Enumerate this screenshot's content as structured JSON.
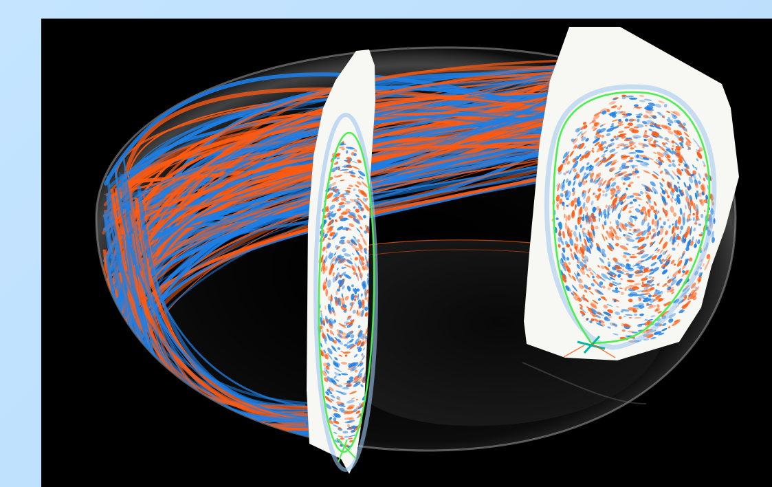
{
  "scene": {
    "background": "#000000",
    "page_background": "#c4e4ff",
    "torus_shell_color": "#cfcfcf",
    "field_line_colors": [
      "#ff5a10",
      "#1d7fe6"
    ],
    "slice_fill": "#f7f7f4",
    "separatrix_color": "#47f04a",
    "x_point_color": "#00b8a0",
    "slices": [
      {
        "name": "poloidal-slice-front"
      },
      {
        "name": "poloidal-slice-right"
      }
    ]
  }
}
